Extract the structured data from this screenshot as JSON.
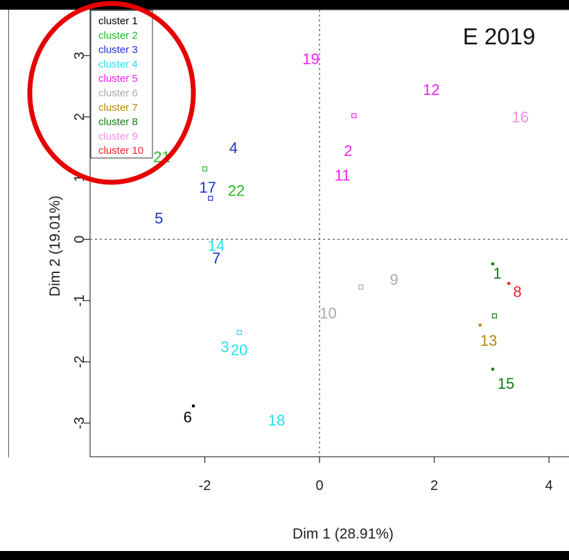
{
  "chart_data": {
    "type": "scatter",
    "title": "E 2019",
    "xlabel": "Dim 1 (28.91%)",
    "ylabel": "Dim 2 (19.01%)",
    "xlim": [
      -4.0,
      4.7
    ],
    "ylim": [
      -3.55,
      3.75
    ],
    "x_ticks": [
      -2,
      0,
      2,
      4
    ],
    "y_ticks": [
      -3,
      -2,
      -1,
      0,
      1,
      2,
      3
    ],
    "reference_lines": {
      "x": 0,
      "y": 0,
      "style": "dotted"
    },
    "legend_position": "top-left",
    "legend": [
      {
        "label": "cluster 1",
        "color": "#000000"
      },
      {
        "label": "cluster 2",
        "color": "#22bb22"
      },
      {
        "label": "cluster 3",
        "color": "#1f2fd0"
      },
      {
        "label": "cluster 4",
        "color": "#22e0ee"
      },
      {
        "label": "cluster 5",
        "color": "#ee22ee"
      },
      {
        "label": "cluster 6",
        "color": "#aaaaaa"
      },
      {
        "label": "cluster 7",
        "color": "#b8860b"
      },
      {
        "label": "cluster 8",
        "color": "#137a13"
      },
      {
        "label": "cluster 9",
        "color": "#f08ee8"
      },
      {
        "label": "cluster 10",
        "color": "#ee2222"
      }
    ],
    "points": [
      {
        "label": "21",
        "x": -2.75,
        "y": 1.35,
        "cluster": 2
      },
      {
        "label": "22",
        "x": -1.45,
        "y": 0.8,
        "cluster": 2
      },
      {
        "label": "4",
        "x": -1.5,
        "y": 1.5,
        "cluster": 3
      },
      {
        "label": "17",
        "x": -1.95,
        "y": 0.85,
        "cluster": 3
      },
      {
        "label": "5",
        "x": -2.8,
        "y": 0.35,
        "cluster": 3
      },
      {
        "label": "7",
        "x": -1.8,
        "y": -0.3,
        "cluster": 3
      },
      {
        "label": "14",
        "x": -1.8,
        "y": -0.1,
        "cluster": 4
      },
      {
        "label": "3",
        "x": -1.65,
        "y": -1.75,
        "cluster": 4
      },
      {
        "label": "20",
        "x": -1.4,
        "y": -1.8,
        "cluster": 4
      },
      {
        "label": "18",
        "x": -0.75,
        "y": -2.95,
        "cluster": 4
      },
      {
        "label": "6",
        "x": -2.3,
        "y": -2.9,
        "cluster": 1
      },
      {
        "label": "19",
        "x": -0.15,
        "y": 2.95,
        "cluster": 5
      },
      {
        "label": "12",
        "x": 1.95,
        "y": 2.45,
        "cluster": 5
      },
      {
        "label": "2",
        "x": 0.5,
        "y": 1.45,
        "cluster": 5
      },
      {
        "label": "11",
        "x": 0.4,
        "y": 1.05,
        "cluster": 5
      },
      {
        "label": "16",
        "x": 3.5,
        "y": 2.0,
        "cluster": 9
      },
      {
        "label": "9",
        "x": 1.3,
        "y": -0.65,
        "cluster": 6
      },
      {
        "label": "10",
        "x": 0.15,
        "y": -1.2,
        "cluster": 6
      },
      {
        "label": "1",
        "x": 3.1,
        "y": -0.55,
        "cluster": 8
      },
      {
        "label": "15",
        "x": 3.25,
        "y": -2.35,
        "cluster": 8
      },
      {
        "label": "8",
        "x": 3.45,
        "y": -0.85,
        "cluster": 10
      },
      {
        "label": "13",
        "x": 2.95,
        "y": -1.65,
        "cluster": 7
      }
    ],
    "centroids": [
      {
        "x": -2.0,
        "y": 1.15,
        "cluster": 2
      },
      {
        "x": -1.9,
        "y": 0.67,
        "cluster": 3
      },
      {
        "x": -1.4,
        "y": -1.52,
        "cluster": 4
      },
      {
        "x": 0.6,
        "y": 2.02,
        "cluster": 5
      },
      {
        "x": 0.72,
        "y": -0.78,
        "cluster": 6
      },
      {
        "x": 3.05,
        "y": -1.25,
        "cluster": 8
      }
    ],
    "dots": [
      {
        "x": -2.2,
        "y": -2.72,
        "cluster": 1
      },
      {
        "x": 2.8,
        "y": -1.4,
        "cluster": 7
      },
      {
        "x": 3.02,
        "y": -2.12,
        "cluster": 8
      },
      {
        "x": 3.02,
        "y": -0.4,
        "cluster": 8
      },
      {
        "x": 3.3,
        "y": -0.72,
        "cluster": 10
      }
    ]
  }
}
